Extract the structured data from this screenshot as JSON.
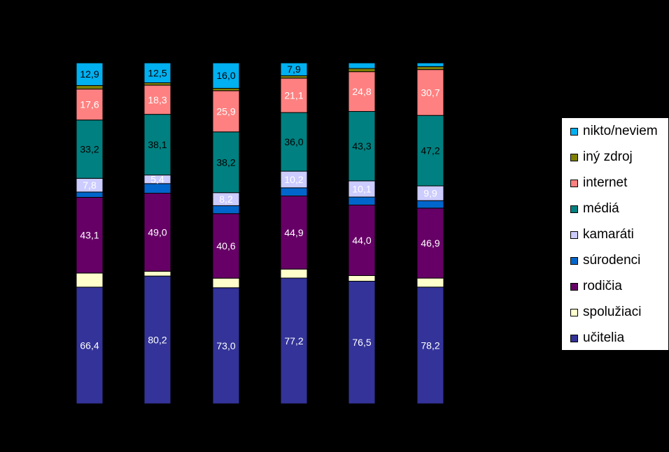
{
  "chart_data": {
    "type": "bar",
    "stacked": true,
    "normalized": true,
    "ylim": [
      0,
      100
    ],
    "categories": [
      "",
      "",
      "",
      "",
      "",
      ""
    ],
    "series": [
      {
        "name": "učitelia",
        "color": "#333399",
        "values": [
          66.4,
          80.2,
          73.0,
          77.2,
          76.5,
          78.2
        ],
        "labels": [
          "66,4",
          "80,2",
          "73,0",
          "77,2",
          "76,5",
          "78,2"
        ],
        "label_color": "#ffffff"
      },
      {
        "name": "spolužiaci",
        "color": "#ffffcc",
        "values": [
          8.0,
          3.0,
          6.0,
          5.5,
          3.5,
          6.0
        ],
        "labels": [
          "",
          "",
          "",
          "",
          "",
          ""
        ],
        "label_color": "#000000"
      },
      {
        "name": "rodičia",
        "color": "#660066",
        "values": [
          43.1,
          49.0,
          40.6,
          44.9,
          44.0,
          46.9
        ],
        "labels": [
          "43,1",
          "49,0",
          "40,6",
          "44,9",
          "44,0",
          "46,9"
        ],
        "label_color": "#ffffff"
      },
      {
        "name": "súrodenci",
        "color": "#0066cc",
        "values": [
          3.0,
          6.0,
          5.0,
          5.0,
          5.0,
          5.0
        ],
        "labels": [
          "",
          "",
          "",
          "",
          "",
          ""
        ],
        "label_color": "#ffffff"
      },
      {
        "name": "kamaráti",
        "color": "#ccccff",
        "values": [
          7.8,
          5.4,
          8.2,
          10.2,
          10.1,
          9.9
        ],
        "labels": [
          "7,8",
          "5,4",
          "8,2",
          "10,2",
          "10,1",
          "9,9"
        ],
        "label_color": "#ffffff"
      },
      {
        "name": "médiá",
        "color": "#008080",
        "values": [
          33.2,
          38.1,
          38.2,
          36.0,
          43.3,
          47.2
        ],
        "labels": [
          "33,2",
          "38,1",
          "38,2",
          "36,0",
          "43,3",
          "47,2"
        ],
        "label_color": "#000000"
      },
      {
        "name": "internet",
        "color": "#ff8080",
        "values": [
          17.6,
          18.3,
          25.9,
          21.1,
          24.8,
          30.7
        ],
        "labels": [
          "17,6",
          "18,3",
          "25,9",
          "21,1",
          "24,8",
          "30,7"
        ],
        "label_color": "#ffffff"
      },
      {
        "name": "iný zdroj",
        "color": "#808000",
        "values": [
          2.0,
          1.5,
          1.5,
          1.5,
          2.0,
          2.0
        ],
        "labels": [
          "",
          "",
          "",
          "",
          "",
          ""
        ],
        "label_color": "#000000"
      },
      {
        "name": "nikto/neviem",
        "color": "#00b0f0",
        "values": [
          12.9,
          12.5,
          16.0,
          7.9,
          3.5,
          2.5
        ],
        "labels": [
          "12,9",
          "12,5",
          "16,0",
          "7,9",
          "",
          ""
        ],
        "label_color": "#000000"
      }
    ],
    "legend": "right",
    "grid": false
  }
}
